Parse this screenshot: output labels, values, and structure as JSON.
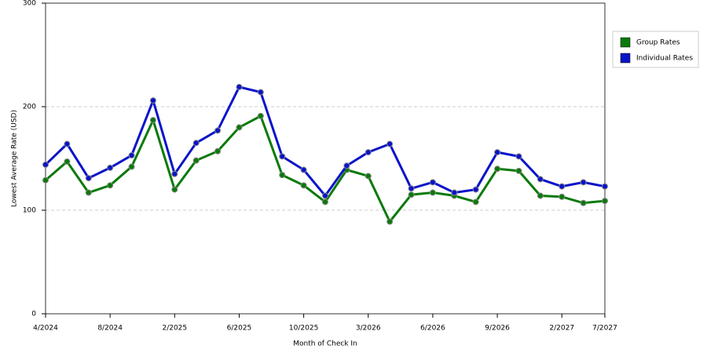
{
  "chart_data": {
    "type": "line",
    "x_label": "Month of Check In",
    "y_label": "Lowest Average Rate (USD)",
    "categories": [
      "4/2024",
      null,
      null,
      "8/2024",
      null,
      null,
      "2/2025",
      null,
      null,
      "6/2025",
      null,
      null,
      "10/2025",
      null,
      null,
      "3/2026",
      null,
      null,
      "6/2026",
      null,
      null,
      "9/2026",
      null,
      null,
      "2/2027",
      null,
      "7/2027"
    ],
    "series": [
      {
        "name": "Group Rates",
        "color": "#0a7a0a",
        "values": [
          129,
          147,
          117,
          124,
          142,
          187,
          120,
          148,
          157,
          180,
          191,
          134,
          124,
          108,
          139,
          133,
          89,
          115,
          117,
          114,
          108,
          140,
          138,
          114,
          113,
          107,
          109
        ]
      },
      {
        "name": "Individual Rates",
        "color": "#0a14c8",
        "values": [
          144,
          164,
          131,
          141,
          153,
          206,
          135,
          165,
          177,
          219,
          214,
          152,
          139,
          114,
          143,
          156,
          164,
          121,
          127,
          117,
          120,
          156,
          152,
          130,
          123,
          127,
          123
        ]
      }
    ],
    "ylim": [
      0,
      300
    ],
    "yticks": [
      0,
      100,
      200,
      300
    ],
    "grid": true,
    "legend": "right"
  }
}
